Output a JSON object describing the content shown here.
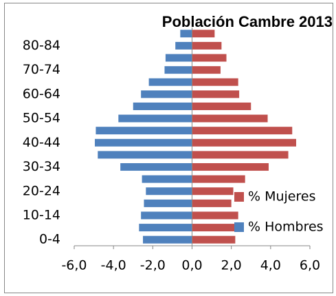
{
  "chart_data": {
    "type": "pyramid",
    "title": "Población Cambre 2013",
    "categories": [
      "0-4",
      null,
      "10-14",
      null,
      "20-24",
      null,
      "30-34",
      null,
      "40-44",
      null,
      "50-54",
      null,
      "60-64",
      null,
      "70-74",
      null,
      "80-84",
      null
    ],
    "series": [
      {
        "name": "% Mujeres",
        "color": "#c0504d",
        "values": [
          2.2,
          2.3,
          2.35,
          2.0,
          2.1,
          2.7,
          3.9,
          4.9,
          5.3,
          5.1,
          3.85,
          3.0,
          2.4,
          2.35,
          1.45,
          1.75,
          1.5,
          1.15
        ]
      },
      {
        "name": "% Hombres",
        "color": "#4f81bd",
        "values": [
          -2.5,
          -2.7,
          -2.6,
          -2.45,
          -2.35,
          -2.55,
          -3.65,
          -4.8,
          -4.95,
          -4.9,
          -3.75,
          -3.0,
          -2.6,
          -2.2,
          -1.4,
          -1.35,
          -0.85,
          -0.6
        ]
      }
    ],
    "xlim": [
      -6,
      6
    ],
    "xticks": [
      {
        "value": -6,
        "label": "-6,0"
      },
      {
        "value": -4,
        "label": "-4,0"
      },
      {
        "value": -2,
        "label": "-2,0"
      },
      {
        "value": 0,
        "label": "0,0"
      },
      {
        "value": 2,
        "label": "2,0"
      },
      {
        "value": 4,
        "label": "4,0"
      },
      {
        "value": 6,
        "label": "6,0"
      }
    ]
  }
}
